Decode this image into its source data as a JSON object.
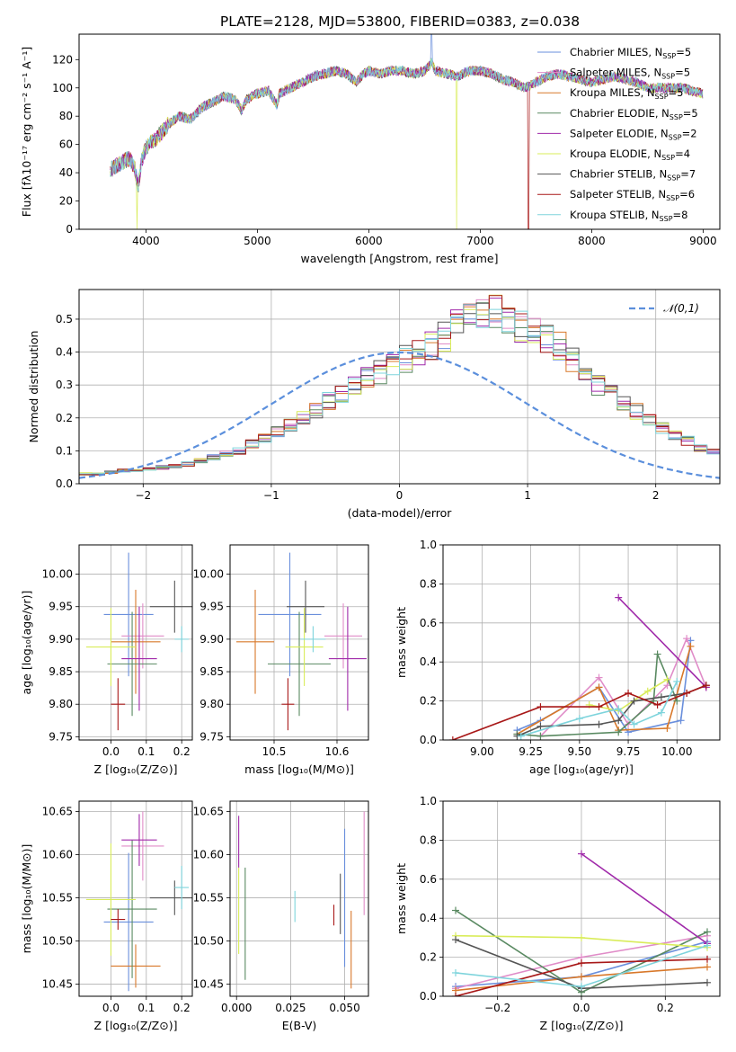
{
  "figure_title": "PLATE=2128, MJD=53800, FIBERID=0383, z=0.038",
  "series_styles": [
    {
      "name": "Chabrier MILES, N",
      "sub": "SSP",
      "suffix": "=5",
      "color": "#6a8fdc"
    },
    {
      "name": "Salpeter MILES, N",
      "sub": "SSP",
      "suffix": "=5",
      "color": "#e08cc8"
    },
    {
      "name": "Kroupa MILES, N",
      "sub": "SSP",
      "suffix": "=5",
      "color": "#d8782a"
    },
    {
      "name": "Chabrier ELODIE, N",
      "sub": "SSP",
      "suffix": "=5",
      "color": "#5a8a62"
    },
    {
      "name": "Salpeter ELODIE, N",
      "sub": "SSP",
      "suffix": "=2",
      "color": "#a02aaa"
    },
    {
      "name": "Kroupa ELODIE, N",
      "sub": "SSP",
      "suffix": "=4",
      "color": "#d9ec5a"
    },
    {
      "name": "Chabrier STELIB, N",
      "sub": "SSP",
      "suffix": "=7",
      "color": "#555555"
    },
    {
      "name": "Salpeter STELIB, N",
      "sub": "SSP",
      "suffix": "=6",
      "color": "#a81818"
    },
    {
      "name": "Kroupa STELIB, N",
      "sub": "SSP",
      "suffix": "=8",
      "color": "#7ed4dc"
    }
  ],
  "chart_data": [
    {
      "id": "spectrum",
      "type": "line",
      "xlabel": "wavelength [Angstrom, rest frame]",
      "ylabel": "Flux [fλ10⁻¹⁷ erg cm⁻² s⁻¹ A⁻¹]",
      "xlim": [
        3400,
        9150
      ],
      "ylim": [
        0,
        138
      ],
      "xticks": [
        4000,
        5000,
        6000,
        7000,
        8000,
        9000
      ],
      "yticks": [
        0,
        20,
        40,
        60,
        80,
        100,
        120
      ],
      "x": [
        3680,
        3750,
        3850,
        3900,
        3930,
        3960,
        4000,
        4100,
        4200,
        4300,
        4400,
        4500,
        4600,
        4700,
        4800,
        4860,
        4900,
        5000,
        5100,
        5175,
        5200,
        5300,
        5400,
        5500,
        5600,
        5700,
        5800,
        5890,
        5950,
        6000,
        6100,
        6200,
        6300,
        6400,
        6500,
        6563,
        6600,
        6700,
        6800,
        6900,
        7000,
        7100,
        7200,
        7300,
        7400,
        7500,
        7600,
        7700,
        7800,
        7900,
        8000,
        8100,
        8200,
        8300,
        8400,
        8500,
        8600,
        8700,
        8800,
        8900,
        9000
      ],
      "y": [
        42,
        46,
        50,
        43,
        30,
        48,
        58,
        65,
        74,
        80,
        78,
        86,
        90,
        94,
        92,
        84,
        92,
        96,
        98,
        88,
        96,
        100,
        104,
        108,
        110,
        112,
        110,
        104,
        110,
        112,
        110,
        112,
        112,
        110,
        112,
        118,
        112,
        110,
        108,
        112,
        112,
        110,
        106,
        104,
        100,
        104,
        108,
        110,
        108,
        106,
        104,
        106,
        108,
        106,
        104,
        100,
        100,
        100,
        100,
        98,
        96
      ]
    },
    {
      "id": "residuals",
      "type": "histogram",
      "xlabel": "(data-model)/error",
      "ylabel": "Normed distribution",
      "xlim": [
        -2.5,
        2.5
      ],
      "ylim": [
        0,
        0.59
      ],
      "xticks": [
        -2,
        -1,
        0,
        1,
        2
      ],
      "yticks": [
        0.0,
        0.1,
        0.2,
        0.3,
        0.4,
        0.5
      ],
      "bin_width": 0.1,
      "bin_start": -2.5,
      "legend": "𝒩(0,1)",
      "profile": [
        0.03,
        0.03,
        0.035,
        0.04,
        0.04,
        0.045,
        0.05,
        0.055,
        0.06,
        0.07,
        0.08,
        0.09,
        0.1,
        0.12,
        0.14,
        0.16,
        0.18,
        0.2,
        0.22,
        0.25,
        0.27,
        0.3,
        0.32,
        0.34,
        0.36,
        0.38,
        0.4,
        0.42,
        0.45,
        0.48,
        0.5,
        0.51,
        0.52,
        0.5,
        0.48,
        0.46,
        0.44,
        0.42,
        0.38,
        0.34,
        0.3,
        0.27,
        0.24,
        0.22,
        0.2,
        0.17,
        0.15,
        0.13,
        0.11,
        0.1,
        0.09,
        0.08,
        0.075,
        0.07,
        0.065,
        0.06,
        0.055,
        0.05,
        0.045,
        0.04,
        0.035,
        0.03,
        0.03,
        0.03,
        0.025,
        0.025,
        0.025,
        0.02,
        0.02,
        0.02
      ]
    },
    {
      "id": "age_vs_Z",
      "type": "errorbar",
      "xlabel": "Z [log₁₀(Z/Z⊙)]",
      "ylabel": "age  [log₁₀(age/yr)]",
      "xlim": [
        -0.09,
        0.23
      ],
      "ylim": [
        9.745,
        10.045
      ],
      "xticks": [
        0.0,
        0.1,
        0.2
      ],
      "yticks": [
        9.75,
        9.8,
        9.85,
        9.9,
        9.95,
        10.0
      ],
      "points": [
        {
          "x": 0.05,
          "y": 9.938,
          "xerr": 0.07,
          "yerr": 0.095
        },
        {
          "x": 0.09,
          "y": 9.905,
          "xerr": 0.06,
          "yerr": 0.05
        },
        {
          "x": 0.07,
          "y": 9.896,
          "xerr": 0.07,
          "yerr": 0.08
        },
        {
          "x": 0.06,
          "y": 9.862,
          "xerr": 0.07,
          "yerr": 0.08
        },
        {
          "x": 0.08,
          "y": 9.87,
          "xerr": 0.05,
          "yerr": 0.08
        },
        {
          "x": 0.0,
          "y": 9.888,
          "xerr": 0.07,
          "yerr": 0.06
        },
        {
          "x": 0.18,
          "y": 9.95,
          "xerr": 0.07,
          "yerr": 0.04
        },
        {
          "x": 0.02,
          "y": 9.8,
          "xerr": 0.02,
          "yerr": 0.04
        },
        {
          "x": 0.2,
          "y": 9.9,
          "xerr": 0.02,
          "yerr": 0.02
        }
      ]
    },
    {
      "id": "age_vs_mass",
      "type": "errorbar",
      "xlabel": "mass [log₁₀(M/M⊙)]",
      "ylabel": "",
      "xlim": [
        10.43,
        10.65
      ],
      "ylim": [
        9.745,
        10.045
      ],
      "xticks": [
        10.5,
        10.6
      ],
      "yticks": [
        9.75,
        9.8,
        9.85,
        9.9,
        9.95,
        10.0
      ],
      "points": [
        {
          "x": 10.525,
          "y": 9.938,
          "xerr": 0.05,
          "yerr": 0.095
        },
        {
          "x": 10.61,
          "y": 9.905,
          "xerr": 0.03,
          "yerr": 0.05
        },
        {
          "x": 10.47,
          "y": 9.896,
          "xerr": 0.03,
          "yerr": 0.08
        },
        {
          "x": 10.54,
          "y": 9.862,
          "xerr": 0.05,
          "yerr": 0.08
        },
        {
          "x": 10.617,
          "y": 9.87,
          "xerr": 0.03,
          "yerr": 0.08
        },
        {
          "x": 10.548,
          "y": 9.888,
          "xerr": 0.03,
          "yerr": 0.06
        },
        {
          "x": 10.55,
          "y": 9.95,
          "xerr": 0.03,
          "yerr": 0.04
        },
        {
          "x": 10.522,
          "y": 9.8,
          "xerr": 0.01,
          "yerr": 0.04
        },
        {
          "x": 10.562,
          "y": 9.9,
          "xerr": 0.02,
          "yerr": 0.02
        }
      ]
    },
    {
      "id": "weight_vs_age",
      "type": "line",
      "xlabel": "age  [log₁₀(age/yr)]",
      "ylabel": "mass weight",
      "xlim": [
        8.8,
        10.22
      ],
      "ylim": [
        0,
        1
      ],
      "xticks": [
        9.0,
        9.25,
        9.5,
        9.75,
        10.0
      ],
      "yticks": [
        0.0,
        0.2,
        0.4,
        0.6,
        0.8,
        1.0
      ],
      "series": [
        {
          "x": [
            9.18,
            9.3,
            9.6,
            9.75,
            10.02,
            10.07
          ],
          "y": [
            0.05,
            0.1,
            0.27,
            0.04,
            0.1,
            0.51
          ]
        },
        {
          "x": [
            9.3,
            9.6,
            9.75,
            9.95,
            10.05,
            10.15
          ],
          "y": [
            0.02,
            0.32,
            0.08,
            0.28,
            0.52,
            0.27
          ]
        },
        {
          "x": [
            9.18,
            9.6,
            9.7,
            9.95,
            10.07
          ],
          "y": [
            0.03,
            0.27,
            0.05,
            0.06,
            0.48
          ]
        },
        {
          "x": [
            9.18,
            9.3,
            9.7,
            9.88,
            9.9,
            10.0
          ],
          "y": [
            0.03,
            0.02,
            0.04,
            0.2,
            0.44,
            0.2
          ]
        },
        {
          "x": [
            9.7,
            10.15
          ],
          "y": [
            0.73,
            0.27
          ]
        },
        {
          "x": [
            9.55,
            9.7,
            9.85,
            9.95
          ],
          "y": [
            0.18,
            0.15,
            0.25,
            0.31
          ]
        },
        {
          "x": [
            9.18,
            9.3,
            9.6,
            9.7,
            9.78,
            9.92,
            10.05,
            10.15
          ],
          "y": [
            0.02,
            0.07,
            0.08,
            0.1,
            0.2,
            0.22,
            0.24,
            0.28
          ]
        },
        {
          "x": [
            8.85,
            9.3,
            9.6,
            9.75,
            9.9,
            10.05,
            10.15
          ],
          "y": [
            0.0,
            0.17,
            0.17,
            0.24,
            0.18,
            0.24,
            0.28
          ]
        },
        {
          "x": [
            9.2,
            9.5,
            9.7,
            9.78,
            9.92,
            10.0
          ],
          "y": [
            0.02,
            0.11,
            0.16,
            0.08,
            0.14,
            0.3
          ]
        }
      ]
    },
    {
      "id": "mass_vs_Z",
      "type": "errorbar",
      "xlabel": "Z [log₁₀(Z/Z⊙)]",
      "ylabel": "mass [log₁₀(M/M⊙)]",
      "xlim": [
        -0.09,
        0.23
      ],
      "ylim": [
        10.436,
        10.662
      ],
      "xticks": [
        0.0,
        0.1,
        0.2
      ],
      "yticks": [
        10.45,
        10.5,
        10.55,
        10.6,
        10.65
      ],
      "points": [
        {
          "x": 0.05,
          "y": 10.522,
          "xerr": 0.07,
          "yerr": 0.08
        },
        {
          "x": 0.09,
          "y": 10.61,
          "xerr": 0.06,
          "yerr": 0.04
        },
        {
          "x": 0.07,
          "y": 10.471,
          "xerr": 0.07,
          "yerr": 0.025
        },
        {
          "x": 0.06,
          "y": 10.537,
          "xerr": 0.07,
          "yerr": 0.08
        },
        {
          "x": 0.08,
          "y": 10.617,
          "xerr": 0.05,
          "yerr": 0.03
        },
        {
          "x": 0.0,
          "y": 10.548,
          "xerr": 0.07,
          "yerr": 0.065
        },
        {
          "x": 0.18,
          "y": 10.55,
          "xerr": 0.07,
          "yerr": 0.02
        },
        {
          "x": 0.02,
          "y": 10.525,
          "xerr": 0.02,
          "yerr": 0.012
        },
        {
          "x": 0.2,
          "y": 10.562,
          "xerr": 0.02,
          "yerr": 0.025
        }
      ]
    },
    {
      "id": "mass_vs_ebv",
      "type": "errorbar",
      "xlabel": "E(B-V)",
      "ylabel": "",
      "xlim": [
        -0.003,
        0.061
      ],
      "ylim": [
        10.436,
        10.662
      ],
      "xticks": [
        0.0,
        0.025,
        0.05
      ],
      "yticks": [
        10.45,
        10.5,
        10.55,
        10.6,
        10.65
      ],
      "points": [
        {
          "x": 0.05,
          "y": 10.55,
          "xerr": 0,
          "yerr": 0.08
        },
        {
          "x": 0.059,
          "y": 10.59,
          "xerr": 0,
          "yerr": 0.06
        },
        {
          "x": 0.053,
          "y": 10.49,
          "xerr": 0,
          "yerr": 0.045
        },
        {
          "x": 0.004,
          "y": 10.52,
          "xerr": 0,
          "yerr": 0.065
        },
        {
          "x": 0.001,
          "y": 10.615,
          "xerr": 0,
          "yerr": 0.03
        },
        {
          "x": 0.001,
          "y": 10.535,
          "xerr": 0,
          "yerr": 0.05
        },
        {
          "x": 0.048,
          "y": 10.543,
          "xerr": 0,
          "yerr": 0.035
        },
        {
          "x": 0.045,
          "y": 10.53,
          "xerr": 0,
          "yerr": 0.012
        },
        {
          "x": 0.027,
          "y": 10.54,
          "xerr": 0,
          "yerr": 0.018
        }
      ]
    },
    {
      "id": "weight_vs_Z",
      "type": "line",
      "xlabel": "Z [log₁₀(Z/Z⊙)]",
      "ylabel": "mass weight",
      "xlim": [
        -0.33,
        0.33
      ],
      "ylim": [
        0,
        1
      ],
      "xticks": [
        -0.2,
        0.0,
        0.2
      ],
      "yticks": [
        0.0,
        0.2,
        0.4,
        0.6,
        0.8,
        1.0
      ],
      "series": [
        {
          "x": [
            -0.3,
            0.0,
            0.3
          ],
          "y": [
            0.05,
            0.1,
            0.28
          ]
        },
        {
          "x": [
            -0.3,
            0.0,
            0.3
          ],
          "y": [
            0.04,
            0.2,
            0.31
          ]
        },
        {
          "x": [
            -0.3,
            0.0,
            0.3
          ],
          "y": [
            0.03,
            0.1,
            0.15
          ]
        },
        {
          "x": [
            -0.3,
            0.0,
            0.3
          ],
          "y": [
            0.44,
            0.02,
            0.33
          ]
        },
        {
          "x": [
            0.0,
            0.3
          ],
          "y": [
            0.73,
            0.27
          ]
        },
        {
          "x": [
            -0.3,
            0.0,
            0.3
          ],
          "y": [
            0.31,
            0.3,
            0.25
          ]
        },
        {
          "x": [
            -0.3,
            0.0,
            0.3
          ],
          "y": [
            0.29,
            0.04,
            0.07
          ]
        },
        {
          "x": [
            -0.3,
            0.0,
            0.3
          ],
          "y": [
            0.0,
            0.17,
            0.19
          ]
        },
        {
          "x": [
            -0.3,
            0.0,
            0.3
          ],
          "y": [
            0.12,
            0.05,
            0.26
          ]
        }
      ]
    }
  ]
}
